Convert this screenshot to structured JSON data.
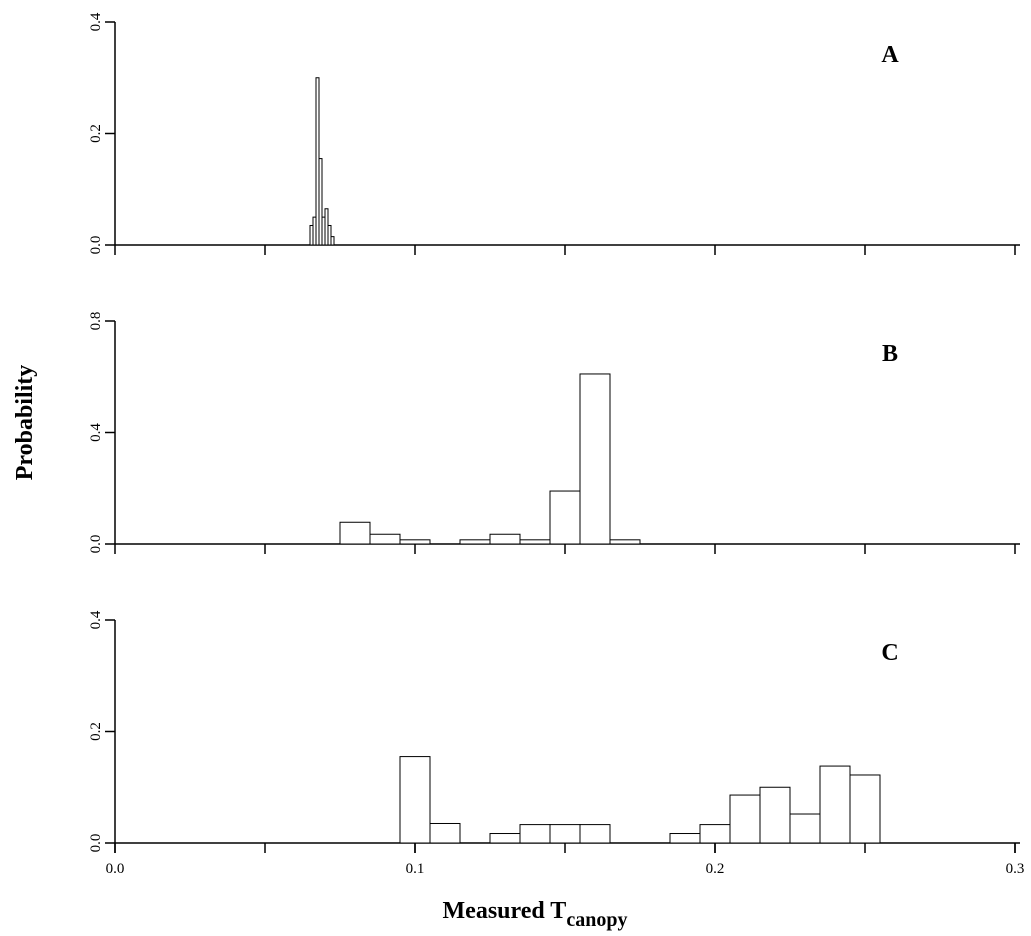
{
  "chart_data": [
    {
      "type": "histogram",
      "label": "A",
      "bins": [
        0.065,
        0.066,
        0.067,
        0.068,
        0.069,
        0.07,
        0.071,
        0.072,
        0.073
      ],
      "values": [
        0.035,
        0.05,
        0.3,
        0.155,
        0.05,
        0.065,
        0.035,
        0.015
      ],
      "xlim": [
        0,
        0.3
      ],
      "xtick_marks": [
        0,
        0.05,
        0.1,
        0.15,
        0.2,
        0.25,
        0.3
      ],
      "ylim": [
        0,
        0.4
      ],
      "yticks": [
        {
          "value": 0,
          "label": "0.0"
        },
        0.2,
        0.4
      ],
      "color": "#ffffff"
    },
    {
      "type": "histogram",
      "label": "B",
      "ylabel": "Probability",
      "bins": [
        0.075,
        0.085,
        0.095,
        0.105,
        0.115,
        0.125,
        0.135,
        0.145,
        0.155,
        0.165,
        0.175
      ],
      "values": [
        0.078,
        0.035,
        0.015,
        0,
        0.015,
        0.035,
        0.015,
        0.19,
        0.61,
        0.015
      ],
      "xlim": [
        0,
        0.3
      ],
      "xtick_marks": [
        0,
        0.05,
        0.1,
        0.15,
        0.2,
        0.25,
        0.3
      ],
      "ylim": [
        0,
        0.8
      ],
      "yticks": [
        {
          "value": 0,
          "label": "0.0"
        },
        0.4,
        0.8
      ],
      "color": "#ffffff"
    },
    {
      "type": "histogram",
      "label": "C",
      "xlabel": "Measured T",
      "xlabel_subscript": "canopy",
      "bins": [
        0.095,
        0.105,
        0.115,
        0.125,
        0.135,
        0.145,
        0.155,
        0.165,
        0.175,
        0.185,
        0.195,
        0.205,
        0.215,
        0.225,
        0.235,
        0.245,
        0.255
      ],
      "values": [
        0.155,
        0.035,
        0,
        0.017,
        0.033,
        0.033,
        0.033,
        0,
        0,
        0.017,
        0.033,
        0.086,
        0.1,
        0.052,
        0.138,
        0.122
      ],
      "xlim": [
        0,
        0.3
      ],
      "xtick_marks": [
        0,
        0.05,
        0.1,
        0.15,
        0.2,
        0.25,
        0.3
      ],
      "xticks": [
        {
          "value": 0,
          "label": "0.0"
        },
        0.1,
        0.2,
        0.3
      ],
      "ylim": [
        0,
        0.4
      ],
      "yticks": [
        {
          "value": 0,
          "label": "0.0"
        },
        0.2,
        0.4
      ],
      "color": "#ffffff"
    }
  ]
}
